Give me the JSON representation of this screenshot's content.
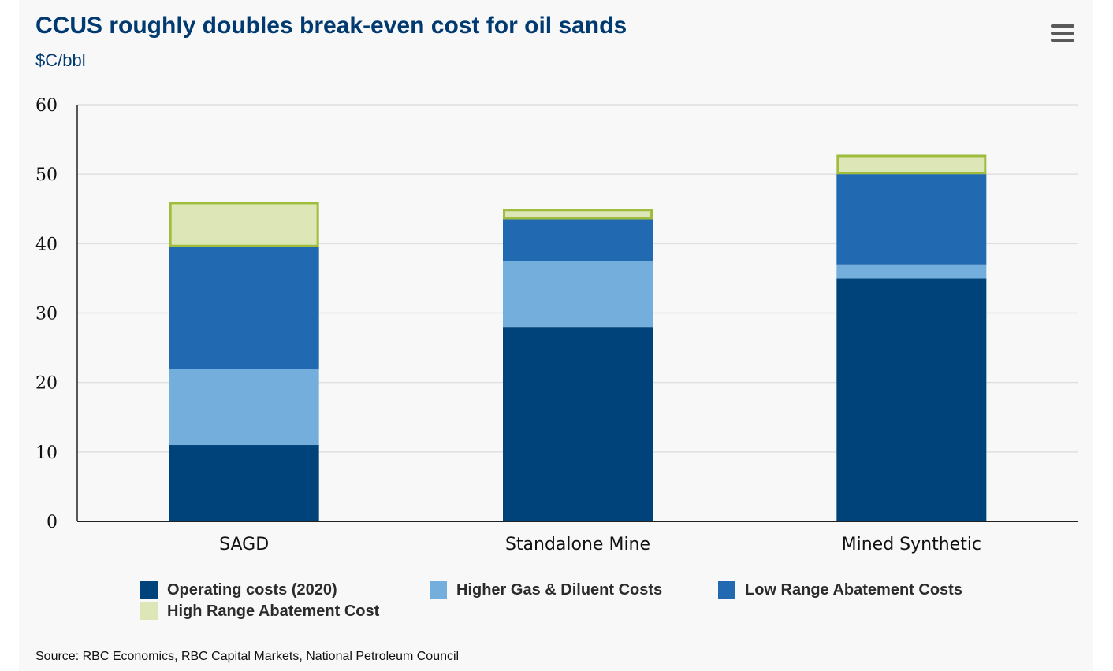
{
  "header": {
    "title": "CCUS roughly doubles break-even cost for oil sands",
    "subtitle": "$C/bbl"
  },
  "menu": {
    "icon": "hamburger-menu-icon"
  },
  "chart_data": {
    "type": "bar",
    "stacked": true,
    "categories": [
      "SAGD",
      "Standalone Mine",
      "Mined Synthetic"
    ],
    "series": [
      {
        "name": "Operating costs (2020)",
        "color": "#00427a",
        "values": [
          11,
          28,
          35
        ]
      },
      {
        "name": "Higher Gas & Diluent Costs",
        "color": "#74aedd",
        "values": [
          11,
          9.5,
          2
        ]
      },
      {
        "name": "Low Range Abatement Costs",
        "color": "#2169b0",
        "values": [
          17.5,
          6,
          13
        ]
      },
      {
        "name": "High Range Abatement Cost",
        "color": "#dce6b6",
        "border": "#9fbc3c",
        "values": [
          6.5,
          1.5,
          2.8
        ]
      }
    ],
    "yticks": [
      0,
      10,
      20,
      30,
      40,
      50,
      60
    ],
    "ylim": [
      0,
      60
    ],
    "grid": true,
    "legend": "bottom",
    "title": "CCUS roughly doubles break-even cost for oil sands",
    "xlabel": "",
    "ylabel": "$C/bbl"
  },
  "source": "Source: RBC Economics, RBC Capital Markets, National Petroleum Council"
}
